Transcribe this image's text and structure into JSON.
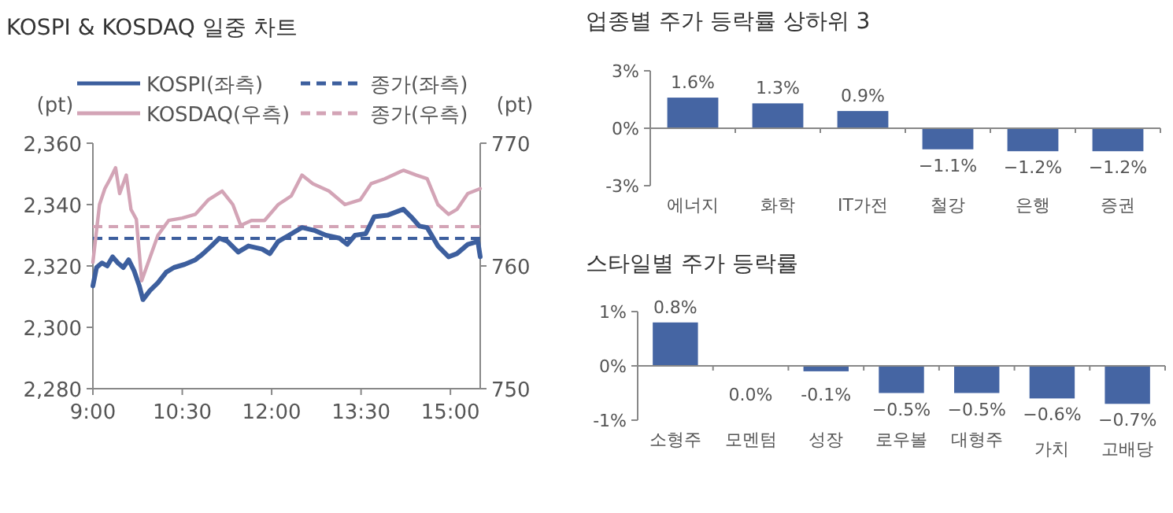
{
  "chart_data": [
    {
      "type": "line",
      "title": "KOSPI & KOSDAQ 일중 차트",
      "ylabel": "(pt)",
      "y2label": "(pt)",
      "legend": "top",
      "xlim": [
        9,
        15.5
      ],
      "xticks": [
        {
          "value": 9,
          "label": "9:00"
        },
        {
          "value": 10.5,
          "label": "10:30"
        },
        {
          "value": 12,
          "label": "12:00"
        },
        {
          "value": 13.5,
          "label": "13:30"
        },
        {
          "value": 15,
          "label": "15:00"
        }
      ],
      "ylim": [
        2280,
        2360
      ],
      "yticks": [
        {
          "value": 2280,
          "label": "2,280"
        },
        {
          "value": 2300,
          "label": "2,300"
        },
        {
          "value": 2320,
          "label": "2,320"
        },
        {
          "value": 2340,
          "label": "2,340"
        },
        {
          "value": 2360,
          "label": "2,360"
        }
      ],
      "y2lim": [
        750,
        770
      ],
      "y2ticks": [
        750,
        760,
        770
      ],
      "series": [
        {
          "name": "KOSPI(좌측)",
          "color": "#3d5f9e",
          "x": [
            9.0,
            9.06,
            9.15,
            9.24,
            9.33,
            9.42,
            9.51,
            9.6,
            9.69,
            9.78,
            9.84,
            9.96,
            10.09,
            10.23,
            10.36,
            10.54,
            10.72,
            10.85,
            10.99,
            11.12,
            11.26,
            11.44,
            11.61,
            11.84,
            11.97,
            12.11,
            12.29,
            12.51,
            12.73,
            12.91,
            13.14,
            13.27,
            13.4,
            13.58,
            13.72,
            13.94,
            14.21,
            14.34,
            14.48,
            14.61,
            14.79,
            14.97,
            15.11,
            15.29,
            15.46,
            15.5
          ],
          "values": [
            2313.5,
            2319.5,
            2321,
            2320,
            2323,
            2321,
            2319.5,
            2322,
            2318.5,
            2313.5,
            2309,
            2312,
            2314.5,
            2318,
            2319.5,
            2320.5,
            2322,
            2324,
            2326.5,
            2329,
            2328,
            2324.5,
            2326.5,
            2325.5,
            2324,
            2328,
            2330,
            2332.5,
            2331.5,
            2330,
            2329,
            2327,
            2330,
            2330.5,
            2336,
            2336.5,
            2338.5,
            2336,
            2333,
            2332.5,
            2326.5,
            2323,
            2324,
            2327,
            2328,
            2323
          ]
        },
        {
          "name": "KOSDAQ(우측)",
          "color": "#d3a4b6",
          "axis": "y2",
          "x": [
            9.0,
            9.11,
            9.2,
            9.29,
            9.38,
            9.45,
            9.56,
            9.64,
            9.73,
            9.82,
            9.96,
            10.09,
            10.27,
            10.5,
            10.72,
            10.94,
            11.17,
            11.35,
            11.48,
            11.66,
            11.88,
            12.11,
            12.33,
            12.51,
            12.69,
            12.96,
            13.23,
            13.49,
            13.67,
            13.9,
            14.21,
            14.43,
            14.61,
            14.79,
            14.97,
            15.11,
            15.29,
            15.5
          ],
          "values": [
            760.3,
            765,
            766.3,
            767.1,
            768,
            765.9,
            767.4,
            764.6,
            763.8,
            758.8,
            760.7,
            762.5,
            763.7,
            763.9,
            764.2,
            765.4,
            766.1,
            765,
            763.3,
            763.7,
            763.7,
            765,
            765.7,
            767.4,
            766.7,
            766.1,
            765,
            765.4,
            766.7,
            767.1,
            767.8,
            767.4,
            767.1,
            765,
            764.2,
            764.6,
            765.9,
            766.3
          ]
        }
      ],
      "ref_lines": [
        {
          "axis": "y",
          "value": 2329,
          "label": "종가(좌측)",
          "color": "#3d5f9e",
          "line_style": "dashed"
        },
        {
          "axis": "y2",
          "value": 763.2,
          "label": "종가(우측)",
          "color": "#d3a4b6",
          "line_style": "dashed"
        }
      ]
    },
    {
      "type": "bar",
      "title": "업종별 주가 등락률 상하위 3",
      "color": "#4565a3",
      "categories": [
        "에너지",
        "화학",
        "IT가전",
        "철강",
        "은행",
        "증권"
      ],
      "values": [
        1.6,
        1.3,
        0.9,
        -1.1,
        -1.2,
        -1.2
      ],
      "value_labels": [
        "1.6%",
        "1.3%",
        "0.9%",
        "−1.1%",
        "−1.2%",
        "−1.2%"
      ],
      "ylim": [
        -3,
        3
      ],
      "yticks": [
        {
          "value": -3,
          "label": "-3%"
        },
        {
          "value": 0,
          "label": "0%"
        },
        {
          "value": 3,
          "label": "3%"
        }
      ]
    },
    {
      "type": "bar",
      "title": "스타일별 주가 등락률",
      "color": "#4565a3",
      "categories": [
        "소형주",
        "모멘텀",
        "성장",
        "로우볼",
        "대형주",
        "가치",
        "고배당"
      ],
      "values": [
        0.8,
        0.0,
        -0.1,
        -0.5,
        -0.5,
        -0.6,
        -0.7
      ],
      "value_labels": [
        "0.8%",
        "0.0%",
        "-0.1%",
        "−0.5%",
        "−0.5%",
        "−0.6%",
        "−0.7%"
      ],
      "ylim": [
        -1,
        1
      ],
      "yticks": [
        {
          "value": -1,
          "label": "-1%"
        },
        {
          "value": 0,
          "label": "0%"
        },
        {
          "value": 1,
          "label": "1%"
        }
      ]
    }
  ]
}
